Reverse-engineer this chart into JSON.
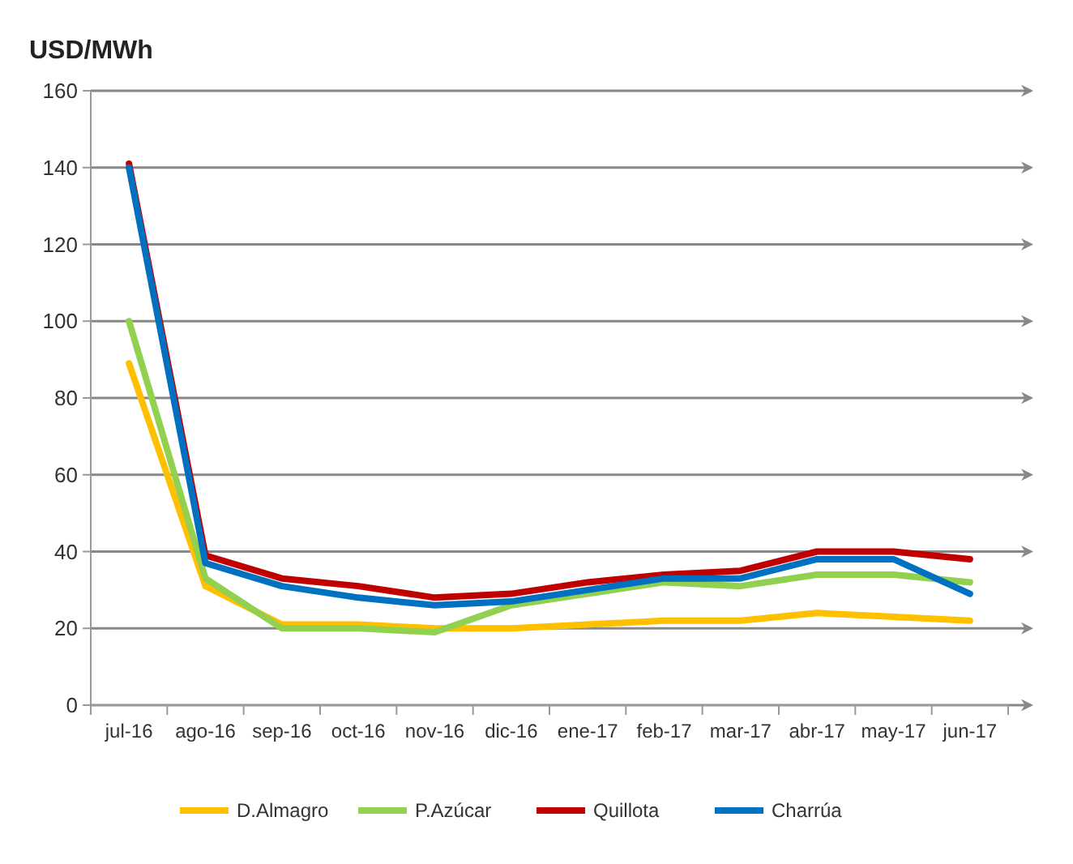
{
  "chart_data": {
    "type": "line",
    "ylabel": "USD/MWh",
    "categories": [
      "jul-16",
      "ago-16",
      "sep-16",
      "oct-16",
      "nov-16",
      "dic-16",
      "ene-17",
      "feb-17",
      "mar-17",
      "abr-17",
      "may-17",
      "jun-17"
    ],
    "series": [
      {
        "name": "D.Almagro",
        "color": "#ffc000",
        "values": [
          89,
          31,
          21,
          21,
          20,
          20,
          21,
          22,
          22,
          24,
          23,
          22
        ]
      },
      {
        "name": "P.Azúcar",
        "color": "#92d050",
        "values": [
          100,
          33,
          20,
          20,
          19,
          26,
          29,
          32,
          31,
          34,
          34,
          32
        ]
      },
      {
        "name": "Quillota",
        "color": "#c00000",
        "values": [
          141,
          39,
          33,
          31,
          28,
          29,
          32,
          34,
          35,
          40,
          40,
          38
        ]
      },
      {
        "name": "Charrúa",
        "color": "#0070c0",
        "values": [
          140,
          37,
          31,
          28,
          26,
          27,
          30,
          33,
          33,
          38,
          38,
          29
        ]
      }
    ],
    "ylim": [
      0,
      160
    ],
    "yticks": [
      0,
      20,
      40,
      60,
      80,
      100,
      120,
      140,
      160
    ],
    "grid": "y",
    "legend": "bottom",
    "marker": "none",
    "line_style": "solid"
  }
}
